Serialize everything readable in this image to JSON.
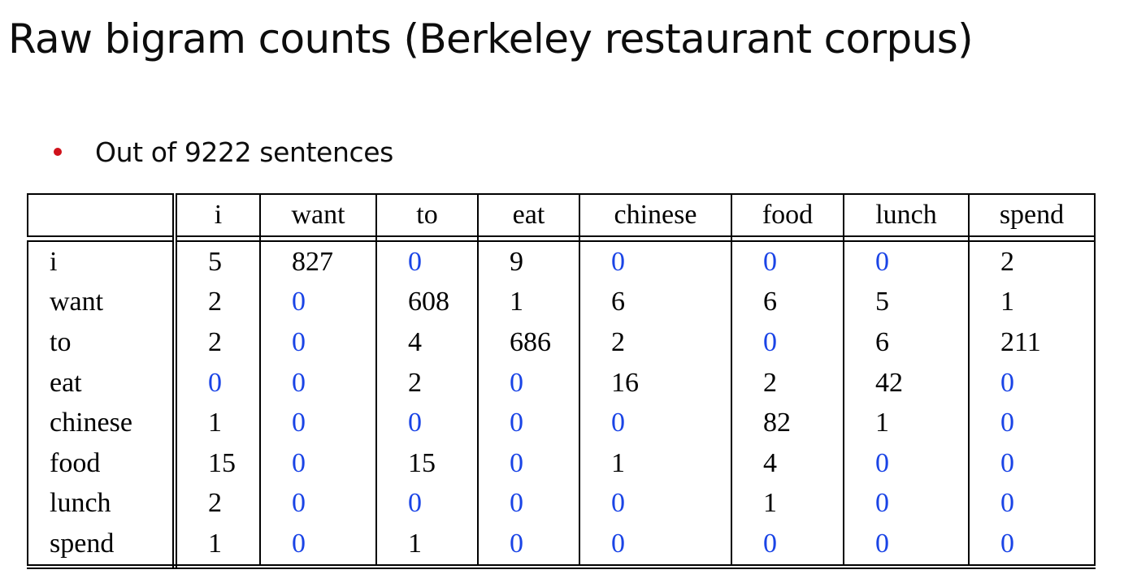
{
  "slide": {
    "title": "Raw bigram counts (Berkeley restaurant corpus)",
    "bullet": "Out of 9222 sentences"
  },
  "colors": {
    "bullet_dot": "#d0121b",
    "zero_value": "#1a44e6",
    "text": "#000000"
  },
  "table": {
    "columns": [
      "i",
      "want",
      "to",
      "eat",
      "chinese",
      "food",
      "lunch",
      "spend"
    ],
    "rows": [
      {
        "label": "i",
        "values": [
          "5",
          "827",
          "0",
          "9",
          "0",
          "0",
          "0",
          "2"
        ]
      },
      {
        "label": "want",
        "values": [
          "2",
          "0",
          "608",
          "1",
          "6",
          "6",
          "5",
          "1"
        ]
      },
      {
        "label": "to",
        "values": [
          "2",
          "0",
          "4",
          "686",
          "2",
          "0",
          "6",
          "211"
        ]
      },
      {
        "label": "eat",
        "values": [
          "0",
          "0",
          "2",
          "0",
          "16",
          "2",
          "42",
          "0"
        ]
      },
      {
        "label": "chinese",
        "values": [
          "1",
          "0",
          "0",
          "0",
          "0",
          "82",
          "1",
          "0"
        ]
      },
      {
        "label": "food",
        "values": [
          "15",
          "0",
          "15",
          "0",
          "1",
          "4",
          "0",
          "0"
        ]
      },
      {
        "label": "lunch",
        "values": [
          "2",
          "0",
          "0",
          "0",
          "0",
          "1",
          "0",
          "0"
        ]
      },
      {
        "label": "spend",
        "values": [
          "1",
          "0",
          "1",
          "0",
          "0",
          "0",
          "0",
          "0"
        ]
      }
    ]
  }
}
